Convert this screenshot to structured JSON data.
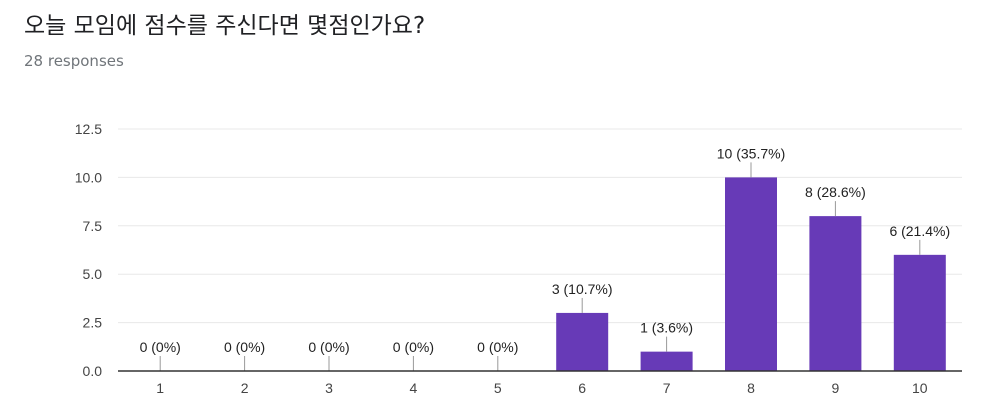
{
  "question": {
    "title": "오늘 모임에 점수를 주신다면 몇점인가요?",
    "responses": "28 responses"
  },
  "colors": {
    "bar": "#673ab7",
    "grid": "#e8e8e8",
    "axis": "#333333",
    "label": "#444444"
  },
  "chart_data": {
    "type": "bar",
    "categories": [
      "1",
      "2",
      "3",
      "4",
      "5",
      "6",
      "7",
      "8",
      "9",
      "10"
    ],
    "values": [
      0,
      0,
      0,
      0,
      0,
      3,
      1,
      10,
      8,
      6
    ],
    "data_labels": [
      "0 (0%)",
      "0 (0%)",
      "0 (0%)",
      "0 (0%)",
      "0 (0%)",
      "3 (10.7%)",
      "1 (3.6%)",
      "10 (35.7%)",
      "8 (28.6%)",
      "6 (21.4%)"
    ],
    "ylim": [
      0,
      12.5
    ],
    "yticks": [
      0,
      2.5,
      5,
      7.5,
      10,
      12.5
    ],
    "ytick_labels": [
      "0.0",
      "2.5",
      "5.0",
      "7.5",
      "10.0",
      "12.5"
    ],
    "grid": true
  }
}
